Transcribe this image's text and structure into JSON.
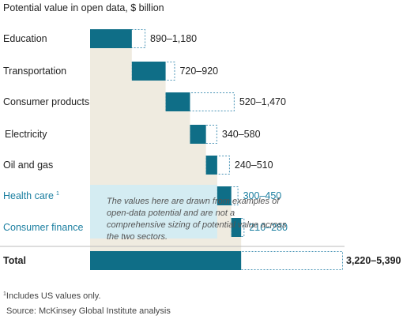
{
  "chart_data": {
    "type": "bar",
    "subtitle": "Potential value in open data, $ billion",
    "categories": [
      "Education",
      "Transportation",
      "Consumer products",
      "Electricity",
      "Oil and gas",
      "Health care",
      "Consumer finance"
    ],
    "footnote_markers": [
      "",
      "",
      "",
      "",
      "",
      "1",
      ""
    ],
    "highlight_categories": [
      "Health care",
      "Consumer finance"
    ],
    "series": [
      {
        "name": "",
        "low": [
          890,
          720,
          520,
          340,
          240,
          300,
          210
        ],
        "high": [
          1180,
          920,
          1470,
          580,
          510,
          450,
          280
        ]
      }
    ],
    "value_labels": [
      "890–1,180",
      "720–920",
      "520–1,470",
      "340–580",
      "240–510",
      "300–450",
      "210–280"
    ],
    "total": {
      "label": "Total",
      "low": 3220,
      "high": 5390,
      "value_label": "3,220–5,390"
    },
    "note": "The values here are drawn from examples of open-data potential and are not a comprehensive sizing of potential value across the two sectors.",
    "footnote": "Includes US values only.",
    "footnote_marker": "1",
    "source": "Source: McKinsey Global Institute analysis",
    "colors": {
      "bar_fill": "#0f6e87",
      "range_border": "#4a94b6",
      "waterfall_bg": "#efebe0",
      "highlight_bg": "#d4ecf2",
      "highlight_text": "#1a7ea0",
      "text": "#222222",
      "note_text": "#555555"
    }
  }
}
